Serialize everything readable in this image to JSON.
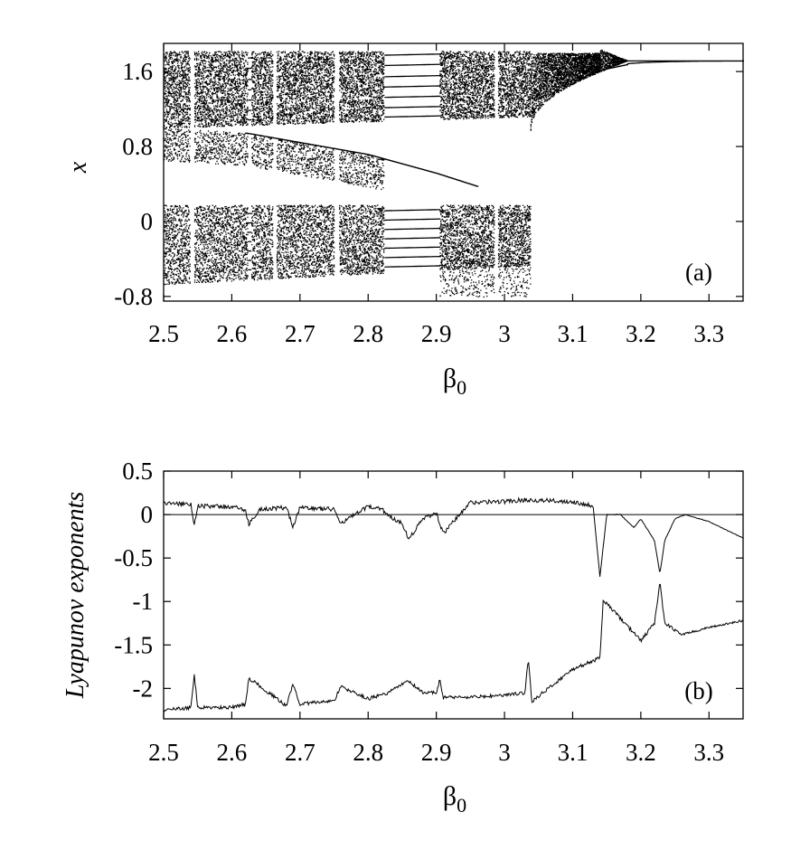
{
  "chart_data": [
    {
      "type": "scatter",
      "panel_label": "(a)",
      "xlabel": "β",
      "xlabel_sub": "0",
      "ylabel": "x",
      "xlim": [
        2.5,
        3.35
      ],
      "ylim": [
        -0.85,
        1.9
      ],
      "xticks": [
        2.5,
        2.6,
        2.7,
        2.8,
        2.9,
        3.0,
        3.1,
        3.2,
        3.3
      ],
      "xtick_labels": [
        "2.5",
        "2.6",
        "2.7",
        "2.8",
        "2.9",
        "3",
        "3.1",
        "3.2",
        "3.3"
      ],
      "yticks": [
        -0.8,
        0,
        0.8,
        1.6
      ],
      "ytick_labels": [
        "-0.8",
        "0",
        "0.8",
        "1.6"
      ],
      "description_features": {
        "chaotic_windows": [
          [
            2.5,
            2.538
          ],
          [
            2.545,
            2.623
          ],
          [
            2.628,
            2.66
          ],
          [
            2.665,
            2.695
          ],
          [
            2.695,
            2.75
          ],
          [
            2.757,
            2.823
          ],
          [
            2.905,
            2.985
          ],
          [
            2.99,
            3.038
          ]
        ],
        "periodic_windows": [
          [
            2.623,
            2.628
          ],
          [
            2.823,
            2.905
          ],
          [
            3.038,
            3.14
          ]
        ],
        "upper_band_limits": {
          "x_start": 2.5,
          "top": 1.82,
          "bottom_start": 1.0,
          "bottom_end": 1.12
        },
        "lower_band_limits": {
          "top": 0.18,
          "bottom_start": -0.67,
          "bottom_end": -0.47
        },
        "middle_branch": {
          "x": [
            2.5,
            2.62,
            2.8,
            2.9,
            2.96
          ],
          "y": [
            1.0,
            0.95,
            0.72,
            0.52,
            0.38
          ]
        },
        "fixed_point": {
          "x_start": 3.14,
          "y": 1.72
        },
        "cascade_end": 3.18
      }
    },
    {
      "type": "line",
      "panel_label": "(b)",
      "xlabel": "β",
      "xlabel_sub": "0",
      "ylabel": "Lyapunov exponents",
      "xlim": [
        2.5,
        3.35
      ],
      "ylim": [
        -2.35,
        0.5
      ],
      "xticks": [
        2.5,
        2.6,
        2.7,
        2.8,
        2.9,
        3.0,
        3.1,
        3.2,
        3.3
      ],
      "xtick_labels": [
        "2.5",
        "2.6",
        "2.7",
        "2.8",
        "2.9",
        "3",
        "3.1",
        "3.2",
        "3.3"
      ],
      "yticks": [
        0.5,
        0,
        -0.5,
        -1,
        -1.5,
        -2
      ],
      "ytick_labels": [
        "0.5",
        "0",
        "-0.5",
        "-1",
        "-1.5",
        "-2"
      ],
      "reference_line_y": 0,
      "series": [
        {
          "x": [
            2.5,
            2.54,
            2.545,
            2.55,
            2.6,
            2.62,
            2.625,
            2.64,
            2.68,
            2.69,
            2.7,
            2.75,
            2.76,
            2.8,
            2.82,
            2.83,
            2.85,
            2.86,
            2.88,
            2.9,
            2.91,
            2.95,
            3.0,
            3.03,
            3.06,
            3.1,
            3.13,
            3.14,
            3.15,
            3.17,
            3.19,
            3.2,
            3.22,
            3.228,
            3.235,
            3.25,
            3.265,
            3.3,
            3.35
          ],
          "y": [
            0.13,
            0.12,
            -0.12,
            0.1,
            0.09,
            0.05,
            -0.12,
            0.06,
            0.08,
            -0.14,
            0.08,
            0.06,
            -0.1,
            0.09,
            0.07,
            -0.02,
            -0.1,
            -0.28,
            -0.05,
            0.02,
            -0.22,
            0.14,
            0.15,
            0.17,
            0.16,
            0.15,
            0.1,
            -0.72,
            0.0,
            0.0,
            -0.15,
            -0.05,
            -0.3,
            -0.68,
            -0.3,
            -0.05,
            0.0,
            -0.08,
            -0.27
          ]
        },
        {
          "x": [
            2.5,
            2.54,
            2.545,
            2.55,
            2.6,
            2.62,
            2.625,
            2.68,
            2.69,
            2.7,
            2.75,
            2.76,
            2.8,
            2.83,
            2.85,
            2.86,
            2.88,
            2.9,
            2.905,
            2.91,
            2.95,
            3.0,
            3.03,
            3.035,
            3.04,
            3.1,
            3.14,
            3.145,
            3.2,
            3.22,
            3.228,
            3.235,
            3.26,
            3.3,
            3.35
          ],
          "y": [
            -2.25,
            -2.22,
            -1.85,
            -2.22,
            -2.22,
            -2.18,
            -1.88,
            -2.2,
            -1.95,
            -2.18,
            -2.14,
            -1.98,
            -2.12,
            -2.05,
            -1.95,
            -1.92,
            -2.05,
            -2.05,
            -1.9,
            -2.1,
            -2.1,
            -2.08,
            -2.05,
            -1.65,
            -2.15,
            -1.78,
            -1.65,
            -0.98,
            -1.45,
            -1.25,
            -0.78,
            -1.25,
            -1.38,
            -1.3,
            -1.22
          ]
        }
      ]
    }
  ]
}
